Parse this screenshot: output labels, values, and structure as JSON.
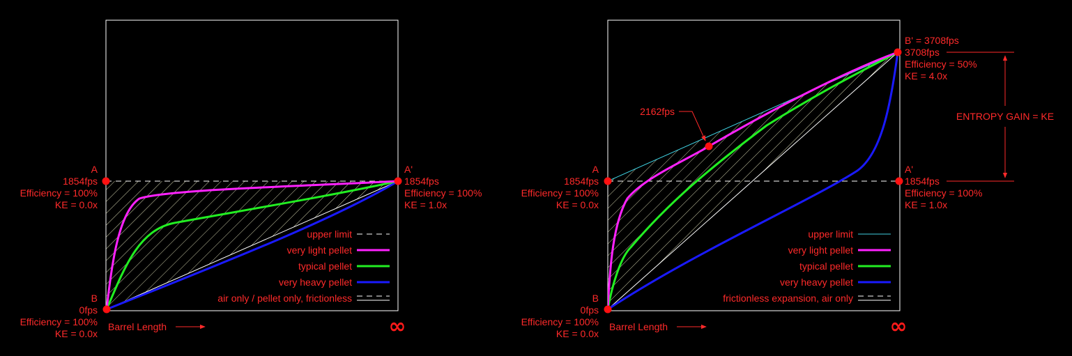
{
  "colors": {
    "background": "#000000",
    "frame": "#ffffff",
    "text": "#ff2a2a",
    "point": "#ff1010",
    "upper_limit_left": "#ffffff",
    "upper_limit_right": "#3fd0e0",
    "very_light": "#ff22ff",
    "typical": "#22ee22",
    "very_heavy": "#1a1aff",
    "hatch": "#e8e8c0"
  },
  "left": {
    "point_a": {
      "letter": "A",
      "speed": "1854fps",
      "efficiency": "Efficiency = 100%",
      "ke": "KE = 0.0x"
    },
    "point_a_prime": {
      "letter": "A'",
      "speed": "1854fps",
      "efficiency": "Efficiency = 100%",
      "ke": "KE = 1.0x"
    },
    "point_b": {
      "letter": "B",
      "speed": "0fps",
      "efficiency": "Efficiency = 100%",
      "ke": "KE = 0.0x"
    },
    "x_axis_label": "Barrel Length",
    "infinity": "∞",
    "legend": [
      {
        "label": "upper limit",
        "style": "dashed"
      },
      {
        "label": "very light pellet",
        "style": "very_light"
      },
      {
        "label": "typical pellet",
        "style": "typical"
      },
      {
        "label": "very heavy pellet",
        "style": "very_heavy"
      },
      {
        "label": "air only / pellet only, frictionless",
        "style": "double-dashed"
      }
    ]
  },
  "right": {
    "point_a": {
      "letter": "A",
      "speed": "1854fps",
      "efficiency": "Efficiency = 100%",
      "ke": "KE = 0.0x"
    },
    "point_a_prime": {
      "letter": "A'",
      "speed": "1854fps",
      "efficiency": "Efficiency = 100%",
      "ke": "KE = 1.0x"
    },
    "point_b": {
      "letter": "B",
      "speed": "0fps",
      "efficiency": "Efficiency = 100%",
      "ke": "KE = 0.0x"
    },
    "point_b_prime": {
      "title": "B' = 3708fps",
      "speed": "3708fps",
      "efficiency": "Efficiency = 50%",
      "ke": "KE = 4.0x"
    },
    "callout": "2162fps",
    "entropy": "ENTROPY GAIN = KE",
    "x_axis_label": "Barrel Length",
    "infinity": "∞",
    "legend": [
      {
        "label": "upper limit",
        "style": "upper_limit_right"
      },
      {
        "label": "very light pellet",
        "style": "very_light"
      },
      {
        "label": "typical pellet",
        "style": "typical"
      },
      {
        "label": "very heavy pellet",
        "style": "very_heavy"
      },
      {
        "label": "frictionless expansion, air only",
        "style": "double-dashed"
      }
    ]
  }
}
